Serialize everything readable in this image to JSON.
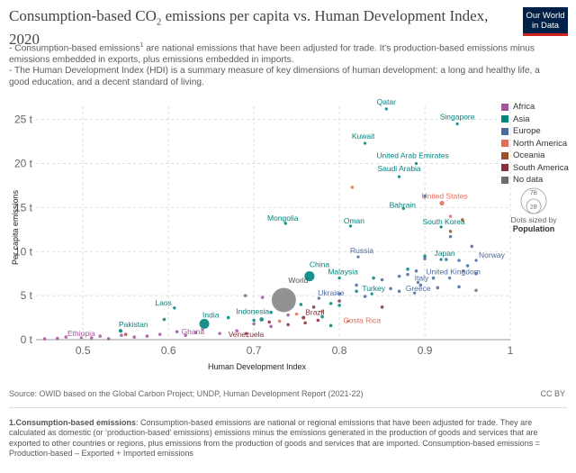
{
  "header": {
    "title_part1": "Consumption-based CO",
    "title_sub": "2",
    "title_part2": " emissions per capita vs. Human Development Index, 2020",
    "subtitle_line1_a": "- Consumption-based emissions",
    "subtitle_line1_sup": "1",
    "subtitle_line1_b": " are national emissions that have been adjusted for trade. It's production-based emissions minus emissions embedded in exports, plus emissions embedded in imports.",
    "subtitle_line2": "- The Human Development Index (HDI) is a summary measure of key dimensions of human development: a long and healthy life, a good education, and a decent standard of living."
  },
  "logo": {
    "line1": "Our World",
    "line2": "in Data"
  },
  "legend": {
    "items": [
      {
        "label": "Africa",
        "color": "#a2559c"
      },
      {
        "label": "Asia",
        "color": "#00847e"
      },
      {
        "label": "Europe",
        "color": "#4c6a9c"
      },
      {
        "label": "North America",
        "color": "#e56e5a"
      },
      {
        "label": "Oceania",
        "color": "#9a5129"
      },
      {
        "label": "South America",
        "color": "#883039"
      },
      {
        "label": "No data",
        "color": "#6d6e71"
      }
    ],
    "size_key_large": "7B",
    "size_key_small": "2B",
    "size_caption": "Dots sized by",
    "size_variable": "Population"
  },
  "chart_data": {
    "type": "scatter",
    "title": "Consumption-based CO2 emissions per capita vs. Human Development Index, 2020",
    "xlabel": "Human Development Index",
    "ylabel": "Per capita emissions",
    "xlim": [
      0.445,
      1.0
    ],
    "ylim": [
      0,
      26.5
    ],
    "xticks": [
      0.5,
      0.6,
      0.7,
      0.8,
      0.9,
      1
    ],
    "xtick_labels": [
      "0.5",
      "0.6",
      "0.7",
      "0.8",
      "0.9",
      "1"
    ],
    "yticks": [
      0,
      5,
      10,
      15,
      20,
      25
    ],
    "ytick_labels": [
      "0 t",
      "5 t",
      "10 t",
      "15 t",
      "20 t",
      "25 t"
    ],
    "labeled_points": [
      {
        "name": "Qatar",
        "x": 0.855,
        "y": 26.2,
        "region": "Asia",
        "size": 0.2
      },
      {
        "name": "Singapore",
        "x": 0.938,
        "y": 24.5,
        "region": "Asia",
        "size": 0.3
      },
      {
        "name": "Kuwait",
        "x": 0.83,
        "y": 22.3,
        "region": "Asia",
        "size": 0.3
      },
      {
        "name": "United Arab Emirates",
        "x": 0.89,
        "y": 20.0,
        "region": "Asia",
        "size": 0.4
      },
      {
        "name": "Saudi Arabia",
        "x": 0.87,
        "y": 18.5,
        "region": "Asia",
        "size": 0.5
      },
      {
        "name": "United States",
        "x": 0.92,
        "y": 15.5,
        "region": "North America",
        "size": 3.3
      },
      {
        "name": "Bahrain",
        "x": 0.875,
        "y": 14.9,
        "region": "Asia",
        "size": 0.2
      },
      {
        "name": "Mongolia",
        "x": 0.737,
        "y": 13.2,
        "region": "Asia",
        "size": 0.3
      },
      {
        "name": "Oman",
        "x": 0.813,
        "y": 12.9,
        "region": "Asia",
        "size": 0.3
      },
      {
        "name": "South Korea",
        "x": 0.919,
        "y": 12.8,
        "region": "Asia",
        "size": 0.5
      },
      {
        "name": "Russia",
        "x": 0.822,
        "y": 9.4,
        "region": "Europe",
        "size": 1.4
      },
      {
        "name": "Japan",
        "x": 0.919,
        "y": 9.1,
        "region": "Asia",
        "size": 1.2
      },
      {
        "name": "Norway",
        "x": 0.96,
        "y": 9.0,
        "region": "Europe",
        "size": 0.2
      },
      {
        "name": "China",
        "x": 0.765,
        "y": 7.2,
        "region": "Asia",
        "size": 14.2
      },
      {
        "name": "Malaysia",
        "x": 0.8,
        "y": 7.0,
        "region": "Asia",
        "size": 0.3
      },
      {
        "name": "United Kingdom",
        "x": 0.929,
        "y": 7.0,
        "region": "Europe",
        "size": 0.7
      },
      {
        "name": "Italy",
        "x": 0.892,
        "y": 6.5,
        "region": "Europe",
        "size": 0.6
      },
      {
        "name": "Turkey",
        "x": 0.838,
        "y": 5.2,
        "region": "Asia",
        "size": 0.8
      },
      {
        "name": "Greece",
        "x": 0.888,
        "y": 5.3,
        "region": "Europe",
        "size": 0.1
      },
      {
        "name": "World",
        "x": 0.735,
        "y": 4.5,
        "region": "No data",
        "size": 78
      },
      {
        "name": "Ukraine",
        "x": 0.776,
        "y": 4.7,
        "region": "Europe",
        "size": 0.4
      },
      {
        "name": "Laos",
        "x": 0.607,
        "y": 3.6,
        "region": "Asia",
        "size": 0.1
      },
      {
        "name": "India",
        "x": 0.642,
        "y": 1.8,
        "region": "Asia",
        "size": 13.8
      },
      {
        "name": "Indonesia",
        "x": 0.709,
        "y": 2.3,
        "region": "Asia",
        "size": 2.7
      },
      {
        "name": "Brazil",
        "x": 0.758,
        "y": 2.5,
        "region": "South America",
        "size": 2.1
      },
      {
        "name": "Costa Rica",
        "x": 0.81,
        "y": 2.1,
        "region": "North America",
        "size": 0.1
      },
      {
        "name": "Pakistan",
        "x": 0.544,
        "y": 1.0,
        "region": "Asia",
        "size": 2.2
      },
      {
        "name": "Ghana",
        "x": 0.632,
        "y": 0.8,
        "region": "Africa",
        "size": 0.3
      },
      {
        "name": "Venezuela",
        "x": 0.691,
        "y": 0.7,
        "region": "South America",
        "size": 0.3
      },
      {
        "name": "Ethiopia",
        "x": 0.498,
        "y": 0.2,
        "region": "Africa",
        "size": 1.2
      }
    ],
    "other_points": [
      {
        "x": 0.455,
        "y": 0.1,
        "region": "Africa"
      },
      {
        "x": 0.47,
        "y": 0.15,
        "region": "Africa"
      },
      {
        "x": 0.48,
        "y": 0.3,
        "region": "Africa"
      },
      {
        "x": 0.51,
        "y": 0.2,
        "region": "Africa"
      },
      {
        "x": 0.52,
        "y": 0.4,
        "region": "Africa"
      },
      {
        "x": 0.53,
        "y": 0.1,
        "region": "Africa"
      },
      {
        "x": 0.545,
        "y": 0.5,
        "region": "Africa"
      },
      {
        "x": 0.56,
        "y": 0.3,
        "region": "Africa"
      },
      {
        "x": 0.575,
        "y": 0.4,
        "region": "Africa"
      },
      {
        "x": 0.59,
        "y": 0.6,
        "region": "Africa"
      },
      {
        "x": 0.61,
        "y": 0.9,
        "region": "Africa"
      },
      {
        "x": 0.62,
        "y": 0.5,
        "region": "Africa"
      },
      {
        "x": 0.64,
        "y": 1.2,
        "region": "Africa"
      },
      {
        "x": 0.66,
        "y": 0.7,
        "region": "Africa"
      },
      {
        "x": 0.68,
        "y": 1.0,
        "region": "Africa"
      },
      {
        "x": 0.7,
        "y": 1.8,
        "region": "Africa"
      },
      {
        "x": 0.72,
        "y": 1.5,
        "region": "Africa"
      },
      {
        "x": 0.74,
        "y": 2.8,
        "region": "Africa"
      },
      {
        "x": 0.71,
        "y": 4.8,
        "region": "Africa"
      },
      {
        "x": 0.595,
        "y": 2.3,
        "region": "Asia"
      },
      {
        "x": 0.67,
        "y": 2.5,
        "region": "Asia"
      },
      {
        "x": 0.7,
        "y": 2.2,
        "region": "Asia"
      },
      {
        "x": 0.72,
        "y": 3.1,
        "region": "Asia"
      },
      {
        "x": 0.755,
        "y": 4.0,
        "region": "Asia"
      },
      {
        "x": 0.78,
        "y": 2.6,
        "region": "Asia"
      },
      {
        "x": 0.79,
        "y": 4.1,
        "region": "Asia"
      },
      {
        "x": 0.8,
        "y": 3.9,
        "region": "Asia"
      },
      {
        "x": 0.82,
        "y": 5.5,
        "region": "Asia"
      },
      {
        "x": 0.84,
        "y": 7.0,
        "region": "Asia"
      },
      {
        "x": 0.88,
        "y": 8.0,
        "region": "Asia"
      },
      {
        "x": 0.9,
        "y": 9.5,
        "region": "Asia"
      },
      {
        "x": 0.79,
        "y": 1.6,
        "region": "Asia"
      },
      {
        "x": 0.8,
        "y": 5.2,
        "region": "Europe"
      },
      {
        "x": 0.82,
        "y": 6.2,
        "region": "Europe"
      },
      {
        "x": 0.83,
        "y": 4.9,
        "region": "Europe"
      },
      {
        "x": 0.85,
        "y": 6.8,
        "region": "Europe"
      },
      {
        "x": 0.86,
        "y": 5.8,
        "region": "Europe"
      },
      {
        "x": 0.87,
        "y": 7.2,
        "region": "Europe"
      },
      {
        "x": 0.88,
        "y": 7.4,
        "region": "Europe"
      },
      {
        "x": 0.895,
        "y": 6.2,
        "region": "Europe"
      },
      {
        "x": 0.9,
        "y": 9.2,
        "region": "Europe"
      },
      {
        "x": 0.91,
        "y": 7.0,
        "region": "Europe"
      },
      {
        "x": 0.915,
        "y": 5.9,
        "region": "Europe"
      },
      {
        "x": 0.925,
        "y": 9.1,
        "region": "Europe"
      },
      {
        "x": 0.94,
        "y": 9.0,
        "region": "Europe"
      },
      {
        "x": 0.94,
        "y": 6.0,
        "region": "Europe"
      },
      {
        "x": 0.945,
        "y": 7.8,
        "region": "Europe"
      },
      {
        "x": 0.95,
        "y": 8.4,
        "region": "Europe"
      },
      {
        "x": 0.955,
        "y": 10.6,
        "region": "Europe"
      },
      {
        "x": 0.96,
        "y": 7.5,
        "region": "Europe"
      },
      {
        "x": 0.93,
        "y": 11.7,
        "region": "Europe"
      },
      {
        "x": 0.9,
        "y": 16.3,
        "region": "Europe"
      },
      {
        "x": 0.89,
        "y": 7.8,
        "region": "Europe"
      },
      {
        "x": 0.87,
        "y": 5.5,
        "region": "Europe"
      },
      {
        "x": 0.815,
        "y": 17.3,
        "region": "North America"
      },
      {
        "x": 0.75,
        "y": 2.9,
        "region": "North America"
      },
      {
        "x": 0.78,
        "y": 3.2,
        "region": "North America"
      },
      {
        "x": 0.73,
        "y": 2.1,
        "region": "North America"
      },
      {
        "x": 0.93,
        "y": 14.0,
        "region": "North America"
      },
      {
        "x": 0.944,
        "y": 13.6,
        "region": "Oceania"
      },
      {
        "x": 0.93,
        "y": 12.3,
        "region": "Oceania"
      },
      {
        "x": 0.55,
        "y": 0.6,
        "region": "Oceania"
      },
      {
        "x": 0.77,
        "y": 3.7,
        "region": "South America"
      },
      {
        "x": 0.775,
        "y": 2.2,
        "region": "South America"
      },
      {
        "x": 0.8,
        "y": 4.4,
        "region": "South America"
      },
      {
        "x": 0.74,
        "y": 1.7,
        "region": "South America"
      },
      {
        "x": 0.718,
        "y": 2.0,
        "region": "South America"
      },
      {
        "x": 0.85,
        "y": 3.7,
        "region": "South America"
      },
      {
        "x": 0.76,
        "y": 1.9,
        "region": "South America"
      },
      {
        "x": 0.96,
        "y": 5.6,
        "region": "No data"
      },
      {
        "x": 0.69,
        "y": 5.0,
        "region": "No data"
      }
    ]
  },
  "footer": {
    "source": "Source: OWID based on the Global Carbon Project; UNDP, Human Development Report (2021-22)",
    "license": "CC BY",
    "footnote_term": "1.Consumption-based emissions",
    "footnote_text": ": Consumption-based emissions are national or regional emissions that have been adjusted for trade. They are calculated as domestic (or ‘production-based’ emissions) emissions minus the emissions generated in the production of goods and services that are exported to other countries or regions, plus emissions from the production of goods and services that are imported. Consumption-based emissions = Production-based – Exported + Imported emissions"
  }
}
